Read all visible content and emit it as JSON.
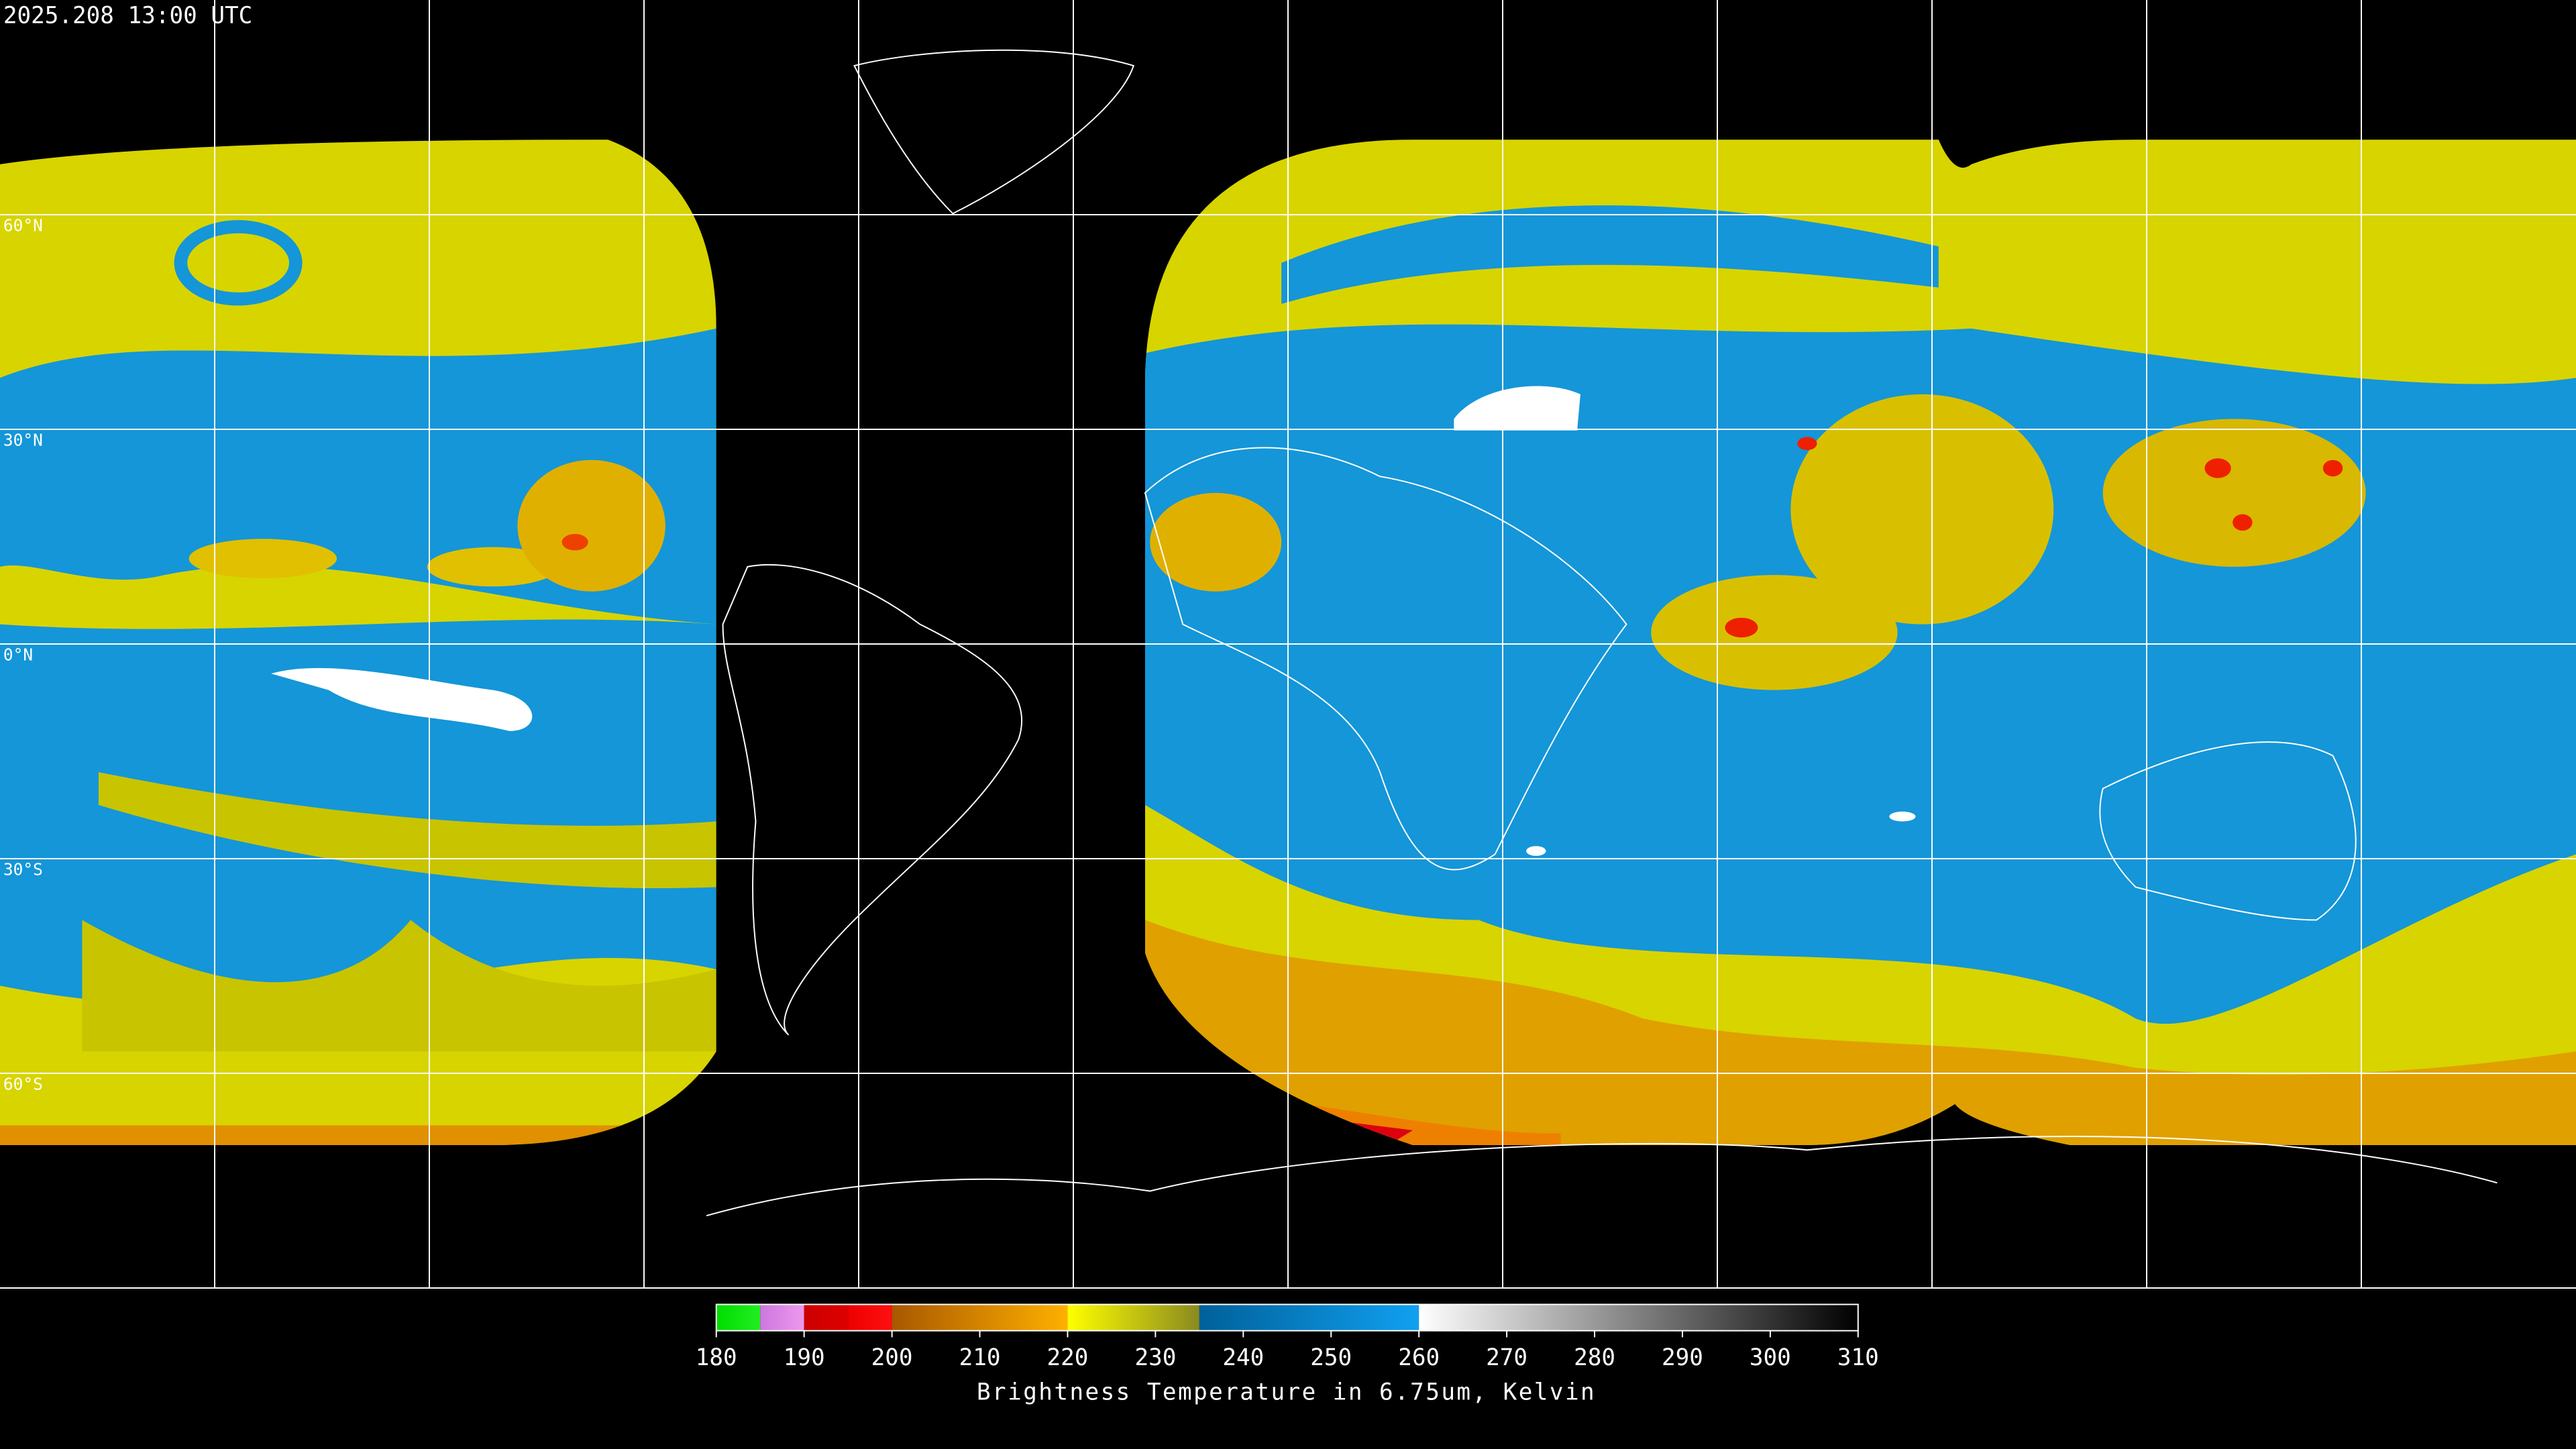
{
  "header": {
    "timestamp": "2025.208 13:00 UTC"
  },
  "lat_grid": [
    {
      "value": 60,
      "label": "60°N"
    },
    {
      "value": 30,
      "label": "30°N"
    },
    {
      "value": 0,
      "label": "0°N"
    },
    {
      "value": -30,
      "label": "30°S"
    },
    {
      "value": -60,
      "label": "60°S"
    }
  ],
  "colorbar": {
    "label": "Brightness Temperature in 6.75um, Kelvin",
    "range": [
      180,
      310
    ],
    "ticks": [
      180,
      190,
      200,
      210,
      220,
      230,
      240,
      250,
      260,
      270,
      280,
      290,
      300,
      310
    ],
    "segments": [
      {
        "from": 180,
        "to": 185,
        "colors": [
          "#00dd00",
          "#22ee22"
        ]
      },
      {
        "from": 185,
        "to": 190,
        "colors": [
          "#cc77dd",
          "#ee99ee"
        ]
      },
      {
        "from": 190,
        "to": 195,
        "colors": [
          "#cc0000",
          "#dd0000"
        ]
      },
      {
        "from": 195,
        "to": 200,
        "colors": [
          "#ee0000",
          "#ff1010"
        ]
      },
      {
        "from": 200,
        "to": 220,
        "colors": [
          "#a85800",
          "#ffb000"
        ]
      },
      {
        "from": 220,
        "to": 235,
        "colors": [
          "#ffff00",
          "#8a8a20"
        ]
      },
      {
        "from": 235,
        "to": 260,
        "colors": [
          "#00609a",
          "#10a0f0"
        ]
      },
      {
        "from": 260,
        "to": 310,
        "colors": [
          "#ffffff",
          "#000000"
        ]
      }
    ]
  }
}
